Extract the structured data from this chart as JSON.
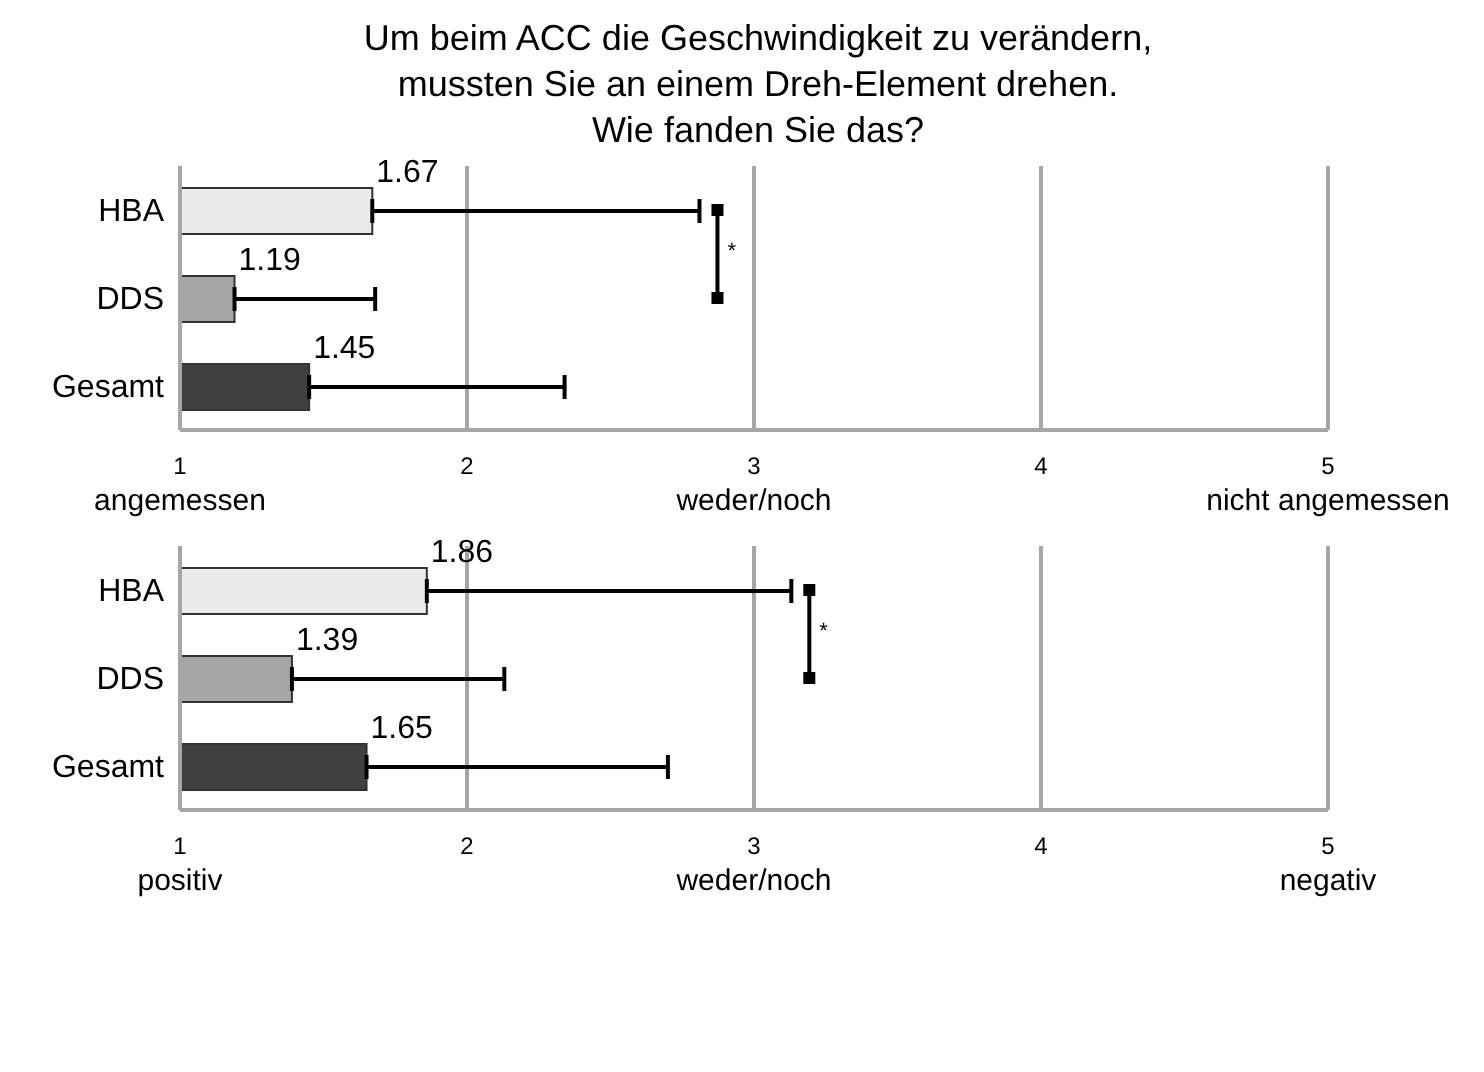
{
  "chart_data": [
    {
      "type": "bar",
      "title": "Um beim ACC die Geschwindigkeit zu verändern,\nmussten Sie an einem Dreh-Element drehen.\nWie fanden Sie das?",
      "orientation": "horizontal",
      "categories": [
        "HBA",
        "DDS",
        "Gesamt"
      ],
      "values": [
        1.67,
        1.19,
        1.45
      ],
      "colors": [
        "#ebebeb",
        "#a6a6a6",
        "#404040"
      ],
      "errors": [
        [
          1.67,
          2.81
        ],
        [
          1.19,
          1.68
        ],
        [
          1.45,
          2.34
        ]
      ],
      "xlim": [
        1,
        5
      ],
      "xticks": [
        {
          "value": 1,
          "label": "1\nangemessen"
        },
        {
          "value": 2,
          "label": "2"
        },
        {
          "value": 3,
          "label": "3\nweder/noch"
        },
        {
          "value": 4,
          "label": "4"
        },
        {
          "value": 5,
          "label": "5\nnicht angemessen"
        }
      ],
      "grid": "x",
      "data_labels": true,
      "annotations": [
        "*"
      ]
    },
    {
      "type": "bar",
      "orientation": "horizontal",
      "categories": [
        "HBA",
        "DDS",
        "Gesamt"
      ],
      "values": [
        1.86,
        1.39,
        1.65
      ],
      "colors": [
        "#ebebeb",
        "#a6a6a6",
        "#404040"
      ],
      "errors": [
        [
          1.86,
          3.13
        ],
        [
          1.39,
          2.13
        ],
        [
          1.65,
          2.7
        ]
      ],
      "xlim": [
        1,
        5
      ],
      "xticks": [
        {
          "value": 1,
          "label": "1\npositiv"
        },
        {
          "value": 2,
          "label": "2"
        },
        {
          "value": 3,
          "label": "3\nweder/noch"
        },
        {
          "value": 4,
          "label": "4"
        },
        {
          "value": 5,
          "label": "5\nnegativ"
        }
      ],
      "grid": "x",
      "data_labels": true,
      "annotations": [
        "*"
      ]
    }
  ]
}
